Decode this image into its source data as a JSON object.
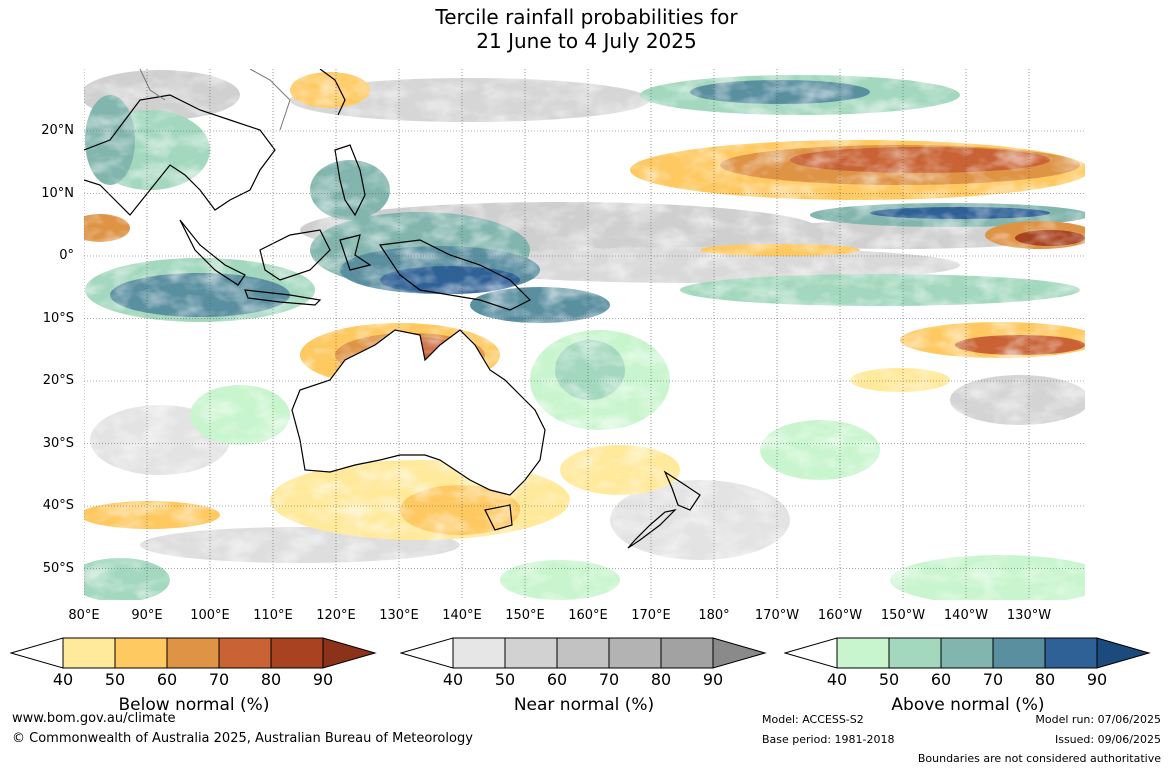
{
  "title": {
    "line1": "Tercile rainfall probabilities for",
    "line2": "21 June to 4 July 2025"
  },
  "map": {
    "region": "Indian Ocean, Maritime Continent, Australia and Western Pacific",
    "lat_labels": [
      "20°N",
      "10°N",
      "0°",
      "10°S",
      "20°S",
      "30°S",
      "40°S",
      "50°S"
    ],
    "lon_labels": [
      "80°E",
      "90°E",
      "100°E",
      "110°E",
      "120°E",
      "130°E",
      "140°E",
      "150°E",
      "160°E",
      "170°E",
      "180°",
      "170°W",
      "160°W",
      "150°W",
      "140°W",
      "130°W"
    ]
  },
  "legends": [
    {
      "label": "Below normal (%)",
      "ticks": [
        "40",
        "50",
        "60",
        "70",
        "80",
        "90"
      ],
      "colors": [
        "#ffffff",
        "#ffe99b",
        "#fec961",
        "#de9345",
        "#c96234",
        "#a84220",
        "#8c3218"
      ]
    },
    {
      "label": "Near normal (%)",
      "ticks": [
        "40",
        "50",
        "60",
        "70",
        "80",
        "90"
      ],
      "colors": [
        "#ffffff",
        "#e6e6e6",
        "#d2d2d2",
        "#c2c2c2",
        "#b3b3b3",
        "#a2a2a2",
        "#8a8a8a"
      ]
    },
    {
      "label": "Above normal (%)",
      "ticks": [
        "40",
        "50",
        "60",
        "70",
        "80",
        "90"
      ],
      "colors": [
        "#ffffff",
        "#c8f5cd",
        "#a3d8be",
        "#81b5ad",
        "#5a8fa0",
        "#2f6196",
        "#1b4a7c"
      ]
    }
  ],
  "footer": {
    "website": "www.bom.gov.au/climate",
    "copyright": "© Commonwealth of Australia 2025, Australian Bureau of Meteorology",
    "model": "Model: ACCESS-S2",
    "base_period": "Base period: 1981-2018",
    "model_run": "Model run: 07/06/2025",
    "issued": "Issued: 09/06/2025",
    "disclaimer": "Boundaries are not considered authoritative"
  }
}
